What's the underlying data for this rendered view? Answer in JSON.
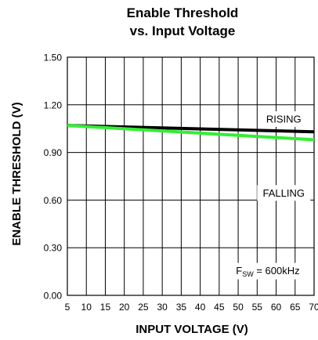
{
  "chart_data": {
    "type": "line",
    "title": "Enable Threshold",
    "subtitle": "vs. Input Voltage",
    "xlabel": "INPUT VOLTAGE (V)",
    "ylabel": "ENABLE THRESHOLD (V)",
    "xlim": [
      5,
      70
    ],
    "ylim": [
      0,
      1.5
    ],
    "xticks": [
      5,
      10,
      15,
      20,
      25,
      30,
      35,
      40,
      45,
      50,
      55,
      60,
      65,
      70
    ],
    "xtick_labels": [
      "5",
      "10",
      "15",
      "20",
      "25",
      "30",
      "35",
      "40",
      "45",
      "50",
      "55",
      "60",
      "65",
      "70"
    ],
    "yticks": [
      0,
      0.3,
      0.6,
      0.9,
      1.2,
      1.5
    ],
    "ytick_labels": [
      "0.00",
      "0.30",
      "0.60",
      "0.90",
      "1.20",
      "1.50"
    ],
    "grid": true,
    "series": [
      {
        "name": "RISING",
        "color": "#000000",
        "x": [
          5,
          70
        ],
        "y": [
          1.07,
          1.03
        ]
      },
      {
        "name": "FALLING",
        "color": "#33ee33",
        "x": [
          5,
          70
        ],
        "y": [
          1.07,
          0.98
        ]
      }
    ],
    "annotations": {
      "rising": "RISING",
      "falling": "FALLING",
      "fsw_main": "F",
      "fsw_sub": "SW",
      "fsw_rest": " = 600kHz"
    }
  }
}
